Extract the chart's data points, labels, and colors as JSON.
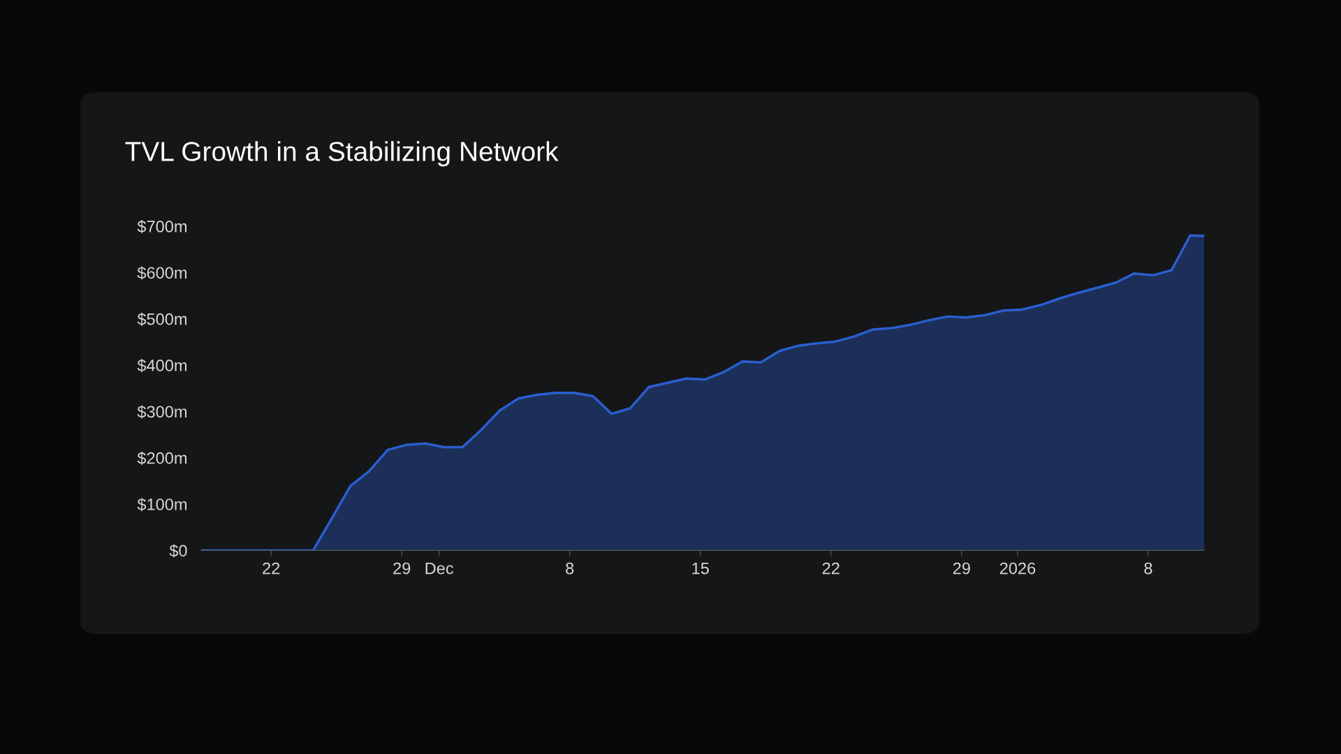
{
  "chart_data": {
    "type": "area",
    "title": "TVL Growth in a Stabilizing Network",
    "x": [
      "2025-11-18T06:00",
      "2025-11-19T06:00",
      "2025-11-20T06:00",
      "2025-11-21T06:00",
      "2025-11-22T06:00",
      "2025-11-23T06:00",
      "2025-11-24T06:00",
      "2025-11-25T06:00",
      "2025-11-26T06:00",
      "2025-11-27T06:00",
      "2025-11-28T06:00",
      "2025-11-29T06:00",
      "2025-11-30T06:00",
      "2025-12-01T06:00",
      "2025-12-02T06:00",
      "2025-12-03T06:00",
      "2025-12-04T06:00",
      "2025-12-05T06:00",
      "2025-12-06T06:00",
      "2025-12-07T06:00",
      "2025-12-08T06:00",
      "2025-12-09T06:00",
      "2025-12-10T06:00",
      "2025-12-11T06:00",
      "2025-12-12T06:00",
      "2025-12-13T06:00",
      "2025-12-14T06:00",
      "2025-12-15T06:00",
      "2025-12-16T06:00",
      "2025-12-17T06:00",
      "2025-12-18T06:00",
      "2025-12-19T06:00",
      "2025-12-20T06:00",
      "2025-12-21T06:00",
      "2025-12-22T06:00",
      "2025-12-23T06:00",
      "2025-12-24T06:00",
      "2025-12-25T06:00",
      "2025-12-26T06:00",
      "2025-12-27T06:00",
      "2025-12-28T06:00",
      "2025-12-29T06:00",
      "2025-12-30T06:00",
      "2025-12-31T06:00",
      "2026-01-01T06:00",
      "2026-01-02T06:00",
      "2026-01-03T06:00",
      "2026-01-04T06:00",
      "2026-01-05T06:00",
      "2026-01-06T06:00",
      "2026-01-07T06:00",
      "2026-01-08T06:00",
      "2026-01-09T06:00",
      "2026-01-10T06:00",
      "2026-01-11"
    ],
    "series": [
      {
        "color": "#2a5fd0",
        "values": [
          0,
          0,
          0,
          0,
          0,
          0,
          0,
          69,
          139,
          171,
          217,
          228,
          231,
          223,
          223,
          260,
          302,
          328,
          336,
          340,
          340,
          333,
          295,
          307,
          353,
          362,
          371,
          369,
          385,
          408,
          406,
          431,
          442,
          447,
          451,
          462,
          477,
          480,
          487,
          497,
          505,
          503,
          508,
          518,
          520,
          530,
          544,
          556,
          567,
          578,
          598,
          594,
          605,
          680,
          679
        ]
      }
    ],
    "xlim": [
      "2025-11-18T06:00",
      "2026-01-11"
    ],
    "xticks": [
      {
        "value": "2025-11-22",
        "label": "22"
      },
      {
        "value": "2025-11-29",
        "label": "29"
      },
      {
        "value": "2025-12-01",
        "label": "Dec"
      },
      {
        "value": "2025-12-08",
        "label": "8"
      },
      {
        "value": "2025-12-15",
        "label": "15"
      },
      {
        "value": "2025-12-22",
        "label": "22"
      },
      {
        "value": "2025-12-29",
        "label": "29"
      },
      {
        "value": "2026-01-01",
        "label": "2026"
      },
      {
        "value": "2026-01-08",
        "label": "8"
      }
    ],
    "ylim": [
      0,
      700
    ],
    "yticks": [
      {
        "value": 0,
        "label": "$0"
      },
      {
        "value": 100,
        "label": "$100m"
      },
      {
        "value": 200,
        "label": "$200m"
      },
      {
        "value": 300,
        "label": "$300m"
      },
      {
        "value": 400,
        "label": "$400m"
      },
      {
        "value": 500,
        "label": "$500m"
      },
      {
        "value": 600,
        "label": "$600m"
      },
      {
        "value": 700,
        "label": "$700m"
      }
    ]
  }
}
